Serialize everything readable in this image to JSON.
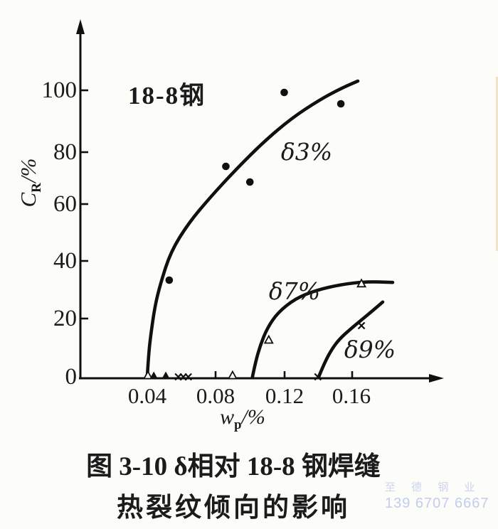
{
  "figure": {
    "annotation": "18-8钢",
    "caption_line1": "图 3-10  δ相对 18-8 钢焊缝",
    "caption_line2": "热裂纹倾向的影响"
  },
  "watermark": {
    "line1": "至 德 钢 业",
    "line2": "139 6707 6667",
    "color": "#c9d2ee"
  },
  "colors": {
    "ink": "#101010",
    "background": "#fcfcf9"
  },
  "chart_data": {
    "type": "line",
    "title": "",
    "annotation": "18-8钢",
    "xlabel": "wp/%",
    "ylabel": "CR/%",
    "xlabel_parts": {
      "main": "w",
      "sub": "p",
      "suffix": "/%"
    },
    "ylabel_parts": {
      "main": "C",
      "sub": "R",
      "suffix": "/%"
    },
    "xlim": [
      0,
      0.195
    ],
    "ylim": [
      0,
      115
    ],
    "grid": false,
    "x_ticks": [
      0.04,
      0.08,
      0.12,
      0.16
    ],
    "x_tick_labels": [
      "0.04",
      "0.08",
      "0.12",
      "0.16"
    ],
    "y_ticks": [
      0,
      20,
      40,
      60,
      80,
      100
    ],
    "y_tick_labels": [
      "0",
      "20",
      "40",
      "60",
      "80",
      "100"
    ],
    "series": [
      {
        "name": "δ3%",
        "marker": "circle-filled",
        "points": [
          [
            0.053,
            34
          ],
          [
            0.086,
            74
          ],
          [
            0.1,
            68.5
          ],
          [
            0.12,
            100
          ],
          [
            0.153,
            96
          ]
        ],
        "curve": [
          [
            0.0402,
            0
          ],
          [
            0.041,
            8
          ],
          [
            0.0423,
            15
          ],
          [
            0.0447,
            25
          ],
          [
            0.048,
            33
          ],
          [
            0.0539,
            44
          ],
          [
            0.0642,
            54
          ],
          [
            0.0767,
            63
          ],
          [
            0.0912,
            72.5
          ],
          [
            0.1078,
            82.5
          ],
          [
            0.1244,
            91
          ],
          [
            0.1409,
            97.5
          ],
          [
            0.1534,
            101.5
          ],
          [
            0.1629,
            104
          ]
        ]
      },
      {
        "name": "δ7%",
        "marker": "triangle-open",
        "points": [
          [
            0.111,
            13
          ],
          [
            0.165,
            32.8
          ]
        ],
        "curve": [
          [
            0.1015,
            0
          ],
          [
            0.1032,
            5
          ],
          [
            0.106,
            11
          ],
          [
            0.11,
            17
          ],
          [
            0.1161,
            22.5
          ],
          [
            0.1264,
            27.5
          ],
          [
            0.1388,
            30.5
          ],
          [
            0.1534,
            32.5
          ],
          [
            0.1679,
            33.5
          ],
          [
            0.1832,
            33.2
          ]
        ]
      },
      {
        "name": "δ9%",
        "marker": "x",
        "points": [
          [
            0.165,
            18
          ]
        ],
        "curve": [
          [
            0.1401,
            0
          ],
          [
            0.1435,
            5
          ],
          [
            0.148,
            10
          ],
          [
            0.1525,
            13.5
          ],
          [
            0.159,
            17
          ],
          [
            0.165,
            20
          ],
          [
            0.172,
            23.5
          ],
          [
            0.1774,
            26.3
          ]
        ]
      }
    ],
    "baseline_markers": [
      {
        "type": "triangle-open",
        "x": 0.0406
      },
      {
        "type": "triangle-filled",
        "x": 0.044
      },
      {
        "type": "triangle-filled",
        "x": 0.051
      },
      {
        "type": "x",
        "x": 0.0583
      },
      {
        "type": "x",
        "x": 0.0612
      },
      {
        "type": "x",
        "x": 0.0641
      },
      {
        "type": "triangle-open",
        "x": 0.0899
      },
      {
        "type": "x",
        "x": 0.1396
      }
    ]
  }
}
